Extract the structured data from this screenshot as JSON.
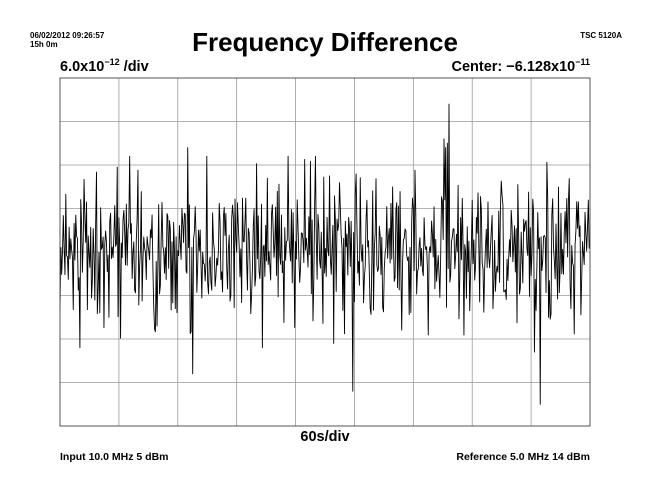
{
  "header": {
    "date_time": "06/02/2012 09:26:57",
    "duration": "15h 0m",
    "instrument": "TSC 5120A",
    "title": "Frequency Difference"
  },
  "scale": {
    "vertical_mantissa": "6.0x10",
    "vertical_exponent": "−12",
    "vertical_suffix": " /div",
    "center_prefix": "Center: −6.128x10",
    "center_exponent": "−11",
    "horizontal": "60s/div"
  },
  "footer": {
    "input": "Input 10.0 MHz 5 dBm",
    "reference": "Reference 5.0 MHz 14 dBm"
  },
  "chart_data": {
    "type": "line",
    "title": "Frequency Difference",
    "x_unit": "s",
    "x_per_div": 60,
    "x_divisions": 9,
    "xlim": [
      0,
      540
    ],
    "y_unit": "div",
    "y_divisions": 8,
    "y_per_div": "6.0x10^-12",
    "center": "-6.128x10^-11",
    "ylim": [
      -4,
      4
    ],
    "grid": true,
    "color": "#000000",
    "grid_color": "#9a9a9a",
    "seed": 20120602,
    "n_points": 640,
    "noise_sd": 0.8,
    "spikes": [
      {
        "x": 49.5,
        "y": -1.5
      },
      {
        "x": 99,
        "y": -1.7
      },
      {
        "x": 130.5,
        "y": 2.4
      },
      {
        "x": 135,
        "y": -2.8
      },
      {
        "x": 241.5,
        "y": 1.2
      },
      {
        "x": 279,
        "y": -2.1
      },
      {
        "x": 298.5,
        "y": -3.2
      },
      {
        "x": 391.5,
        "y": 2.6
      },
      {
        "x": 393,
        "y": 2.4
      },
      {
        "x": 394.5,
        "y": 2.5
      },
      {
        "x": 396,
        "y": 3.4
      },
      {
        "x": 441,
        "y": -1.3
      },
      {
        "x": 448.5,
        "y": 1.0
      },
      {
        "x": 483,
        "y": -2.3
      },
      {
        "x": 489,
        "y": -3.5
      },
      {
        "x": 520.5,
        "y": -1.3
      }
    ]
  }
}
